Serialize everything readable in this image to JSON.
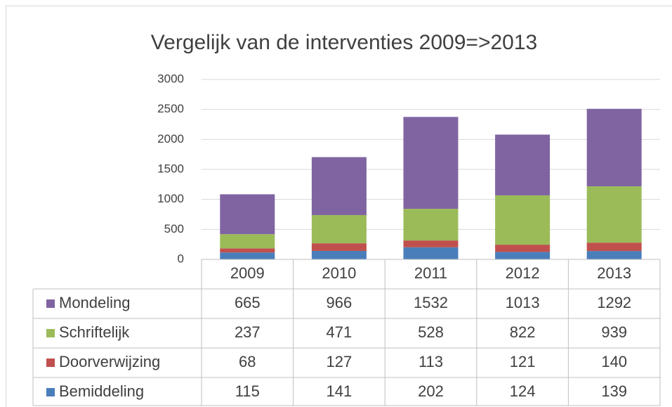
{
  "chart_data": {
    "type": "stacked_bar",
    "title": "Vergelijk van de interventies 2009=>2013",
    "categories": [
      "2009",
      "2010",
      "2011",
      "2012",
      "2013"
    ],
    "series": [
      {
        "name": "Bemiddeling",
        "color": "#4a7ebb",
        "values": [
          115,
          141,
          202,
          124,
          139
        ]
      },
      {
        "name": "Doorverwijzing",
        "color": "#c0504d",
        "values": [
          68,
          127,
          113,
          121,
          140
        ]
      },
      {
        "name": "Schriftelijk",
        "color": "#9bbb59",
        "values": [
          237,
          471,
          528,
          822,
          939
        ]
      },
      {
        "name": "Mondeling",
        "color": "#8064a2",
        "values": [
          665,
          966,
          1532,
          1013,
          1292
        ]
      }
    ],
    "ylim": [
      0,
      3000
    ],
    "yticks": [
      0,
      500,
      1000,
      1500,
      2000,
      2500,
      3000
    ],
    "grid": true,
    "data_table": true
  }
}
